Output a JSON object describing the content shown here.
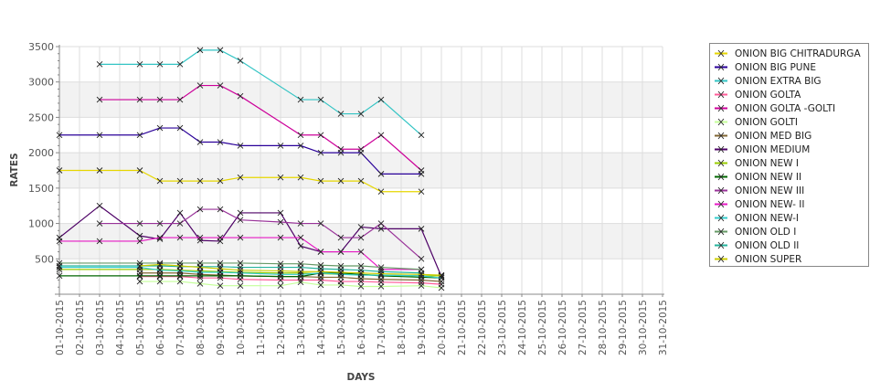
{
  "chart_data": {
    "type": "line",
    "title": "",
    "xlabel": "DAYS",
    "ylabel": "RATES",
    "ylim": [
      0,
      3500
    ],
    "yticks": [
      500,
      1000,
      1500,
      2000,
      2500,
      3000,
      3500
    ],
    "grid": true,
    "legend_position": "right",
    "categories": [
      "01-10-2015",
      "02-10-2015",
      "03-10-2015",
      "04-10-2015",
      "05-10-2015",
      "06-10-2015",
      "07-10-2015",
      "08-10-2015",
      "09-10-2015",
      "10-10-2015",
      "11-10-2015",
      "12-10-2015",
      "13-10-2015",
      "14-10-2015",
      "15-10-2015",
      "16-10-2015",
      "17-10-2015",
      "18-10-2015",
      "19-10-2015",
      "20-10-2015",
      "21-10-2015",
      "22-10-2015",
      "23-10-2015",
      "24-10-2015",
      "25-10-2015",
      "26-10-2015",
      "27-10-2015",
      "28-10-2015",
      "29-10-2015",
      "30-10-2015",
      "31-10-2015"
    ],
    "series": [
      {
        "name": "ONION BIG CHITRADURGA",
        "color": "#e6d600",
        "points": [
          [
            1,
            1750
          ],
          [
            3,
            1750
          ],
          [
            5,
            1750
          ],
          [
            6,
            1600
          ],
          [
            7,
            1600
          ],
          [
            8,
            1600
          ],
          [
            9,
            1600
          ],
          [
            10,
            1650
          ],
          [
            12,
            1650
          ],
          [
            13,
            1650
          ],
          [
            14,
            1600
          ],
          [
            15,
            1600
          ],
          [
            16,
            1600
          ],
          [
            17,
            1450
          ],
          [
            19,
            1450
          ]
        ]
      },
      {
        "name": "ONION BIG PUNE",
        "color": "#2a0099",
        "points": [
          [
            1,
            2250
          ],
          [
            3,
            2250
          ],
          [
            5,
            2250
          ],
          [
            6,
            2350
          ],
          [
            7,
            2350
          ],
          [
            8,
            2150
          ],
          [
            9,
            2150
          ],
          [
            10,
            2100
          ],
          [
            12,
            2100
          ],
          [
            13,
            2100
          ],
          [
            14,
            2000
          ],
          [
            15,
            2000
          ],
          [
            16,
            2000
          ],
          [
            17,
            1700
          ],
          [
            19,
            1700
          ]
        ]
      },
      {
        "name": "ONION EXTRA BIG",
        "color": "#33c4c4",
        "points": [
          [
            3,
            3250
          ],
          [
            5,
            3250
          ],
          [
            6,
            3250
          ],
          [
            7,
            3250
          ],
          [
            8,
            3450
          ],
          [
            9,
            3450
          ],
          [
            10,
            3300
          ],
          [
            13,
            2750
          ],
          [
            14,
            2750
          ],
          [
            15,
            2550
          ],
          [
            16,
            2550
          ],
          [
            17,
            2750
          ],
          [
            19,
            2250
          ]
        ]
      },
      {
        "name": "ONION GOLTA",
        "color": "#ff5c99",
        "points": [
          [
            5,
            250
          ],
          [
            6,
            250
          ],
          [
            7,
            250
          ],
          [
            8,
            230
          ],
          [
            9,
            230
          ],
          [
            10,
            210
          ],
          [
            12,
            200
          ],
          [
            13,
            200
          ],
          [
            14,
            200
          ],
          [
            15,
            180
          ],
          [
            16,
            180
          ],
          [
            17,
            170
          ],
          [
            19,
            160
          ],
          [
            20,
            140
          ]
        ]
      },
      {
        "name": "ONION GOLTA -GOLTI",
        "color": "#cc0099",
        "points": [
          [
            3,
            2750
          ],
          [
            5,
            2750
          ],
          [
            6,
            2750
          ],
          [
            7,
            2750
          ],
          [
            8,
            2950
          ],
          [
            9,
            2950
          ],
          [
            10,
            2800
          ],
          [
            13,
            2250
          ],
          [
            14,
            2250
          ],
          [
            15,
            2050
          ],
          [
            16,
            2050
          ],
          [
            17,
            2250
          ],
          [
            19,
            1750
          ]
        ]
      },
      {
        "name": "ONION GOLTI",
        "color": "#c4ff99",
        "points": [
          [
            5,
            180
          ],
          [
            6,
            180
          ],
          [
            7,
            180
          ],
          [
            8,
            150
          ],
          [
            9,
            120
          ],
          [
            10,
            120
          ],
          [
            12,
            120
          ],
          [
            13,
            170
          ],
          [
            14,
            130
          ],
          [
            15,
            130
          ],
          [
            16,
            110
          ],
          [
            17,
            110
          ],
          [
            19,
            120
          ],
          [
            20,
            90
          ]
        ]
      },
      {
        "name": "ONION MED BIG",
        "color": "#806633",
        "points": [
          [
            5,
            300
          ],
          [
            6,
            300
          ],
          [
            7,
            300
          ],
          [
            8,
            280
          ],
          [
            9,
            270
          ],
          [
            10,
            260
          ],
          [
            12,
            250
          ],
          [
            13,
            250
          ],
          [
            14,
            240
          ],
          [
            15,
            240
          ],
          [
            16,
            220
          ],
          [
            17,
            210
          ],
          [
            19,
            200
          ],
          [
            20,
            180
          ]
        ]
      },
      {
        "name": "ONION MEDIUM",
        "color": "#4d0066",
        "points": [
          [
            1,
            800
          ],
          [
            3,
            1250
          ],
          [
            5,
            825
          ],
          [
            6,
            780
          ],
          [
            7,
            1150
          ],
          [
            8,
            760
          ],
          [
            9,
            750
          ],
          [
            10,
            1150
          ],
          [
            12,
            1150
          ],
          [
            13,
            680
          ],
          [
            14,
            600
          ],
          [
            15,
            600
          ],
          [
            16,
            950
          ],
          [
            17,
            925
          ],
          [
            19,
            925
          ],
          [
            20,
            250
          ]
        ]
      },
      {
        "name": "ONION NEW I",
        "color": "#99cc00",
        "points": [
          [
            1,
            350
          ],
          [
            5,
            350
          ],
          [
            6,
            350
          ],
          [
            7,
            340
          ],
          [
            8,
            330
          ],
          [
            9,
            320
          ],
          [
            10,
            310
          ],
          [
            12,
            300
          ],
          [
            13,
            300
          ],
          [
            14,
            290
          ],
          [
            15,
            280
          ],
          [
            16,
            280
          ],
          [
            17,
            270
          ],
          [
            19,
            260
          ],
          [
            20,
            260
          ]
        ]
      },
      {
        "name": "ONION NEW II",
        "color": "#006600",
        "points": [
          [
            1,
            260
          ],
          [
            5,
            260
          ],
          [
            6,
            260
          ],
          [
            7,
            260
          ],
          [
            8,
            260
          ],
          [
            9,
            260
          ],
          [
            10,
            260
          ],
          [
            12,
            250
          ],
          [
            13,
            250
          ],
          [
            14,
            300
          ],
          [
            15,
            300
          ],
          [
            16,
            280
          ],
          [
            17,
            260
          ],
          [
            19,
            240
          ],
          [
            20,
            230
          ]
        ]
      },
      {
        "name": "ONION NEW III",
        "color": "#993399",
        "points": [
          [
            3,
            1000
          ],
          [
            5,
            1000
          ],
          [
            6,
            1000
          ],
          [
            7,
            1000
          ],
          [
            8,
            1200
          ],
          [
            9,
            1200
          ],
          [
            10,
            1050
          ],
          [
            12,
            1020
          ],
          [
            13,
            1000
          ],
          [
            14,
            1000
          ],
          [
            15,
            800
          ],
          [
            16,
            800
          ],
          [
            17,
            1000
          ],
          [
            19,
            500
          ]
        ]
      },
      {
        "name": "ONION NEW- II",
        "color": "#e619c4",
        "points": [
          [
            1,
            750
          ],
          [
            3,
            750
          ],
          [
            5,
            750
          ],
          [
            6,
            800
          ],
          [
            7,
            800
          ],
          [
            8,
            800
          ],
          [
            9,
            800
          ],
          [
            10,
            800
          ],
          [
            12,
            800
          ],
          [
            13,
            800
          ],
          [
            14,
            600
          ],
          [
            15,
            600
          ],
          [
            16,
            600
          ],
          [
            17,
            350
          ],
          [
            19,
            350
          ]
        ]
      },
      {
        "name": "ONION NEW-I",
        "color": "#33cccc",
        "points": [
          [
            1,
            380
          ],
          [
            5,
            380
          ],
          [
            6,
            340
          ],
          [
            7,
            330
          ],
          [
            8,
            310
          ],
          [
            9,
            310
          ],
          [
            10,
            300
          ],
          [
            12,
            280
          ],
          [
            13,
            280
          ],
          [
            14,
            300
          ],
          [
            15,
            280
          ],
          [
            16,
            270
          ],
          [
            17,
            270
          ],
          [
            19,
            260
          ],
          [
            20,
            230
          ]
        ]
      },
      {
        "name": "ONION OLD I",
        "color": "#669966",
        "points": [
          [
            1,
            440
          ],
          [
            5,
            440
          ],
          [
            6,
            440
          ],
          [
            7,
            440
          ],
          [
            8,
            440
          ],
          [
            9,
            440
          ],
          [
            10,
            440
          ],
          [
            12,
            430
          ],
          [
            13,
            430
          ],
          [
            14,
            410
          ],
          [
            15,
            400
          ],
          [
            16,
            400
          ],
          [
            17,
            380
          ],
          [
            19,
            350
          ]
        ]
      },
      {
        "name": "ONION OLD II",
        "color": "#26b39c",
        "points": [
          [
            1,
            400
          ],
          [
            5,
            400
          ],
          [
            6,
            400
          ],
          [
            7,
            390
          ],
          [
            8,
            390
          ],
          [
            9,
            390
          ],
          [
            10,
            380
          ],
          [
            12,
            380
          ],
          [
            13,
            380
          ],
          [
            14,
            360
          ],
          [
            15,
            350
          ],
          [
            16,
            340
          ],
          [
            17,
            320
          ],
          [
            19,
            300
          ]
        ]
      },
      {
        "name": "ONION SUPER",
        "color": "#cccc00",
        "points": [
          [
            5,
            400
          ],
          [
            6,
            420
          ],
          [
            7,
            400
          ],
          [
            8,
            380
          ],
          [
            9,
            360
          ],
          [
            10,
            340
          ],
          [
            12,
            330
          ],
          [
            13,
            320
          ],
          [
            14,
            320
          ],
          [
            15,
            310
          ],
          [
            16,
            300
          ],
          [
            17,
            290
          ],
          [
            19,
            280
          ],
          [
            20,
            270
          ]
        ]
      }
    ]
  }
}
